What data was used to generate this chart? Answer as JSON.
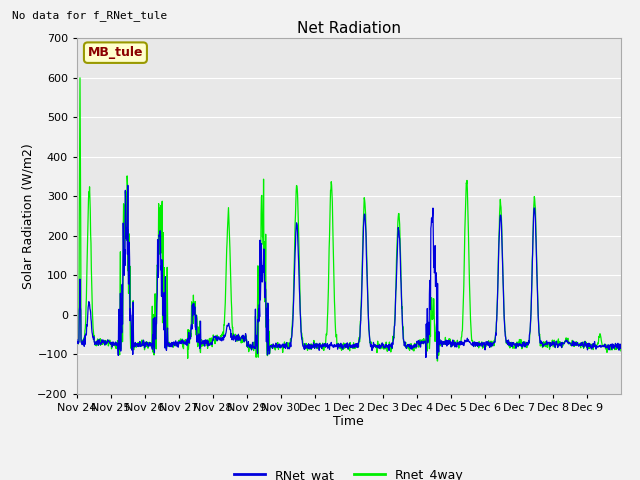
{
  "title": "Net Radiation",
  "xlabel": "Time",
  "ylabel": "Solar Radiation (W/m2)",
  "no_data_text": "No data for f_RNet_tule",
  "box_label": "MB_tule",
  "legend_entries": [
    "RNet_wat",
    "Rnet_4way"
  ],
  "legend_colors": [
    "#0000dd",
    "#00ee00"
  ],
  "line_color_blue": "#0000dd",
  "line_color_green": "#00ee00",
  "ylim": [
    -200,
    700
  ],
  "yticks": [
    -200,
    -100,
    0,
    100,
    200,
    300,
    400,
    500,
    600,
    700
  ],
  "plot_bg_color": "#e8e8e8",
  "fig_bg_color": "#f2f2f2",
  "x_tick_labels": [
    "Nov 24",
    "Nov 25",
    "Nov 26",
    "Nov 27",
    "Nov 28",
    "Nov 29",
    "Nov 30",
    "Dec 1",
    "Dec 2",
    "Dec 3",
    "Dec 4",
    "Dec 5",
    "Dec 6",
    "Dec 7",
    "Dec 8",
    "Dec 9"
  ],
  "num_days": 16,
  "pts_per_day": 96
}
